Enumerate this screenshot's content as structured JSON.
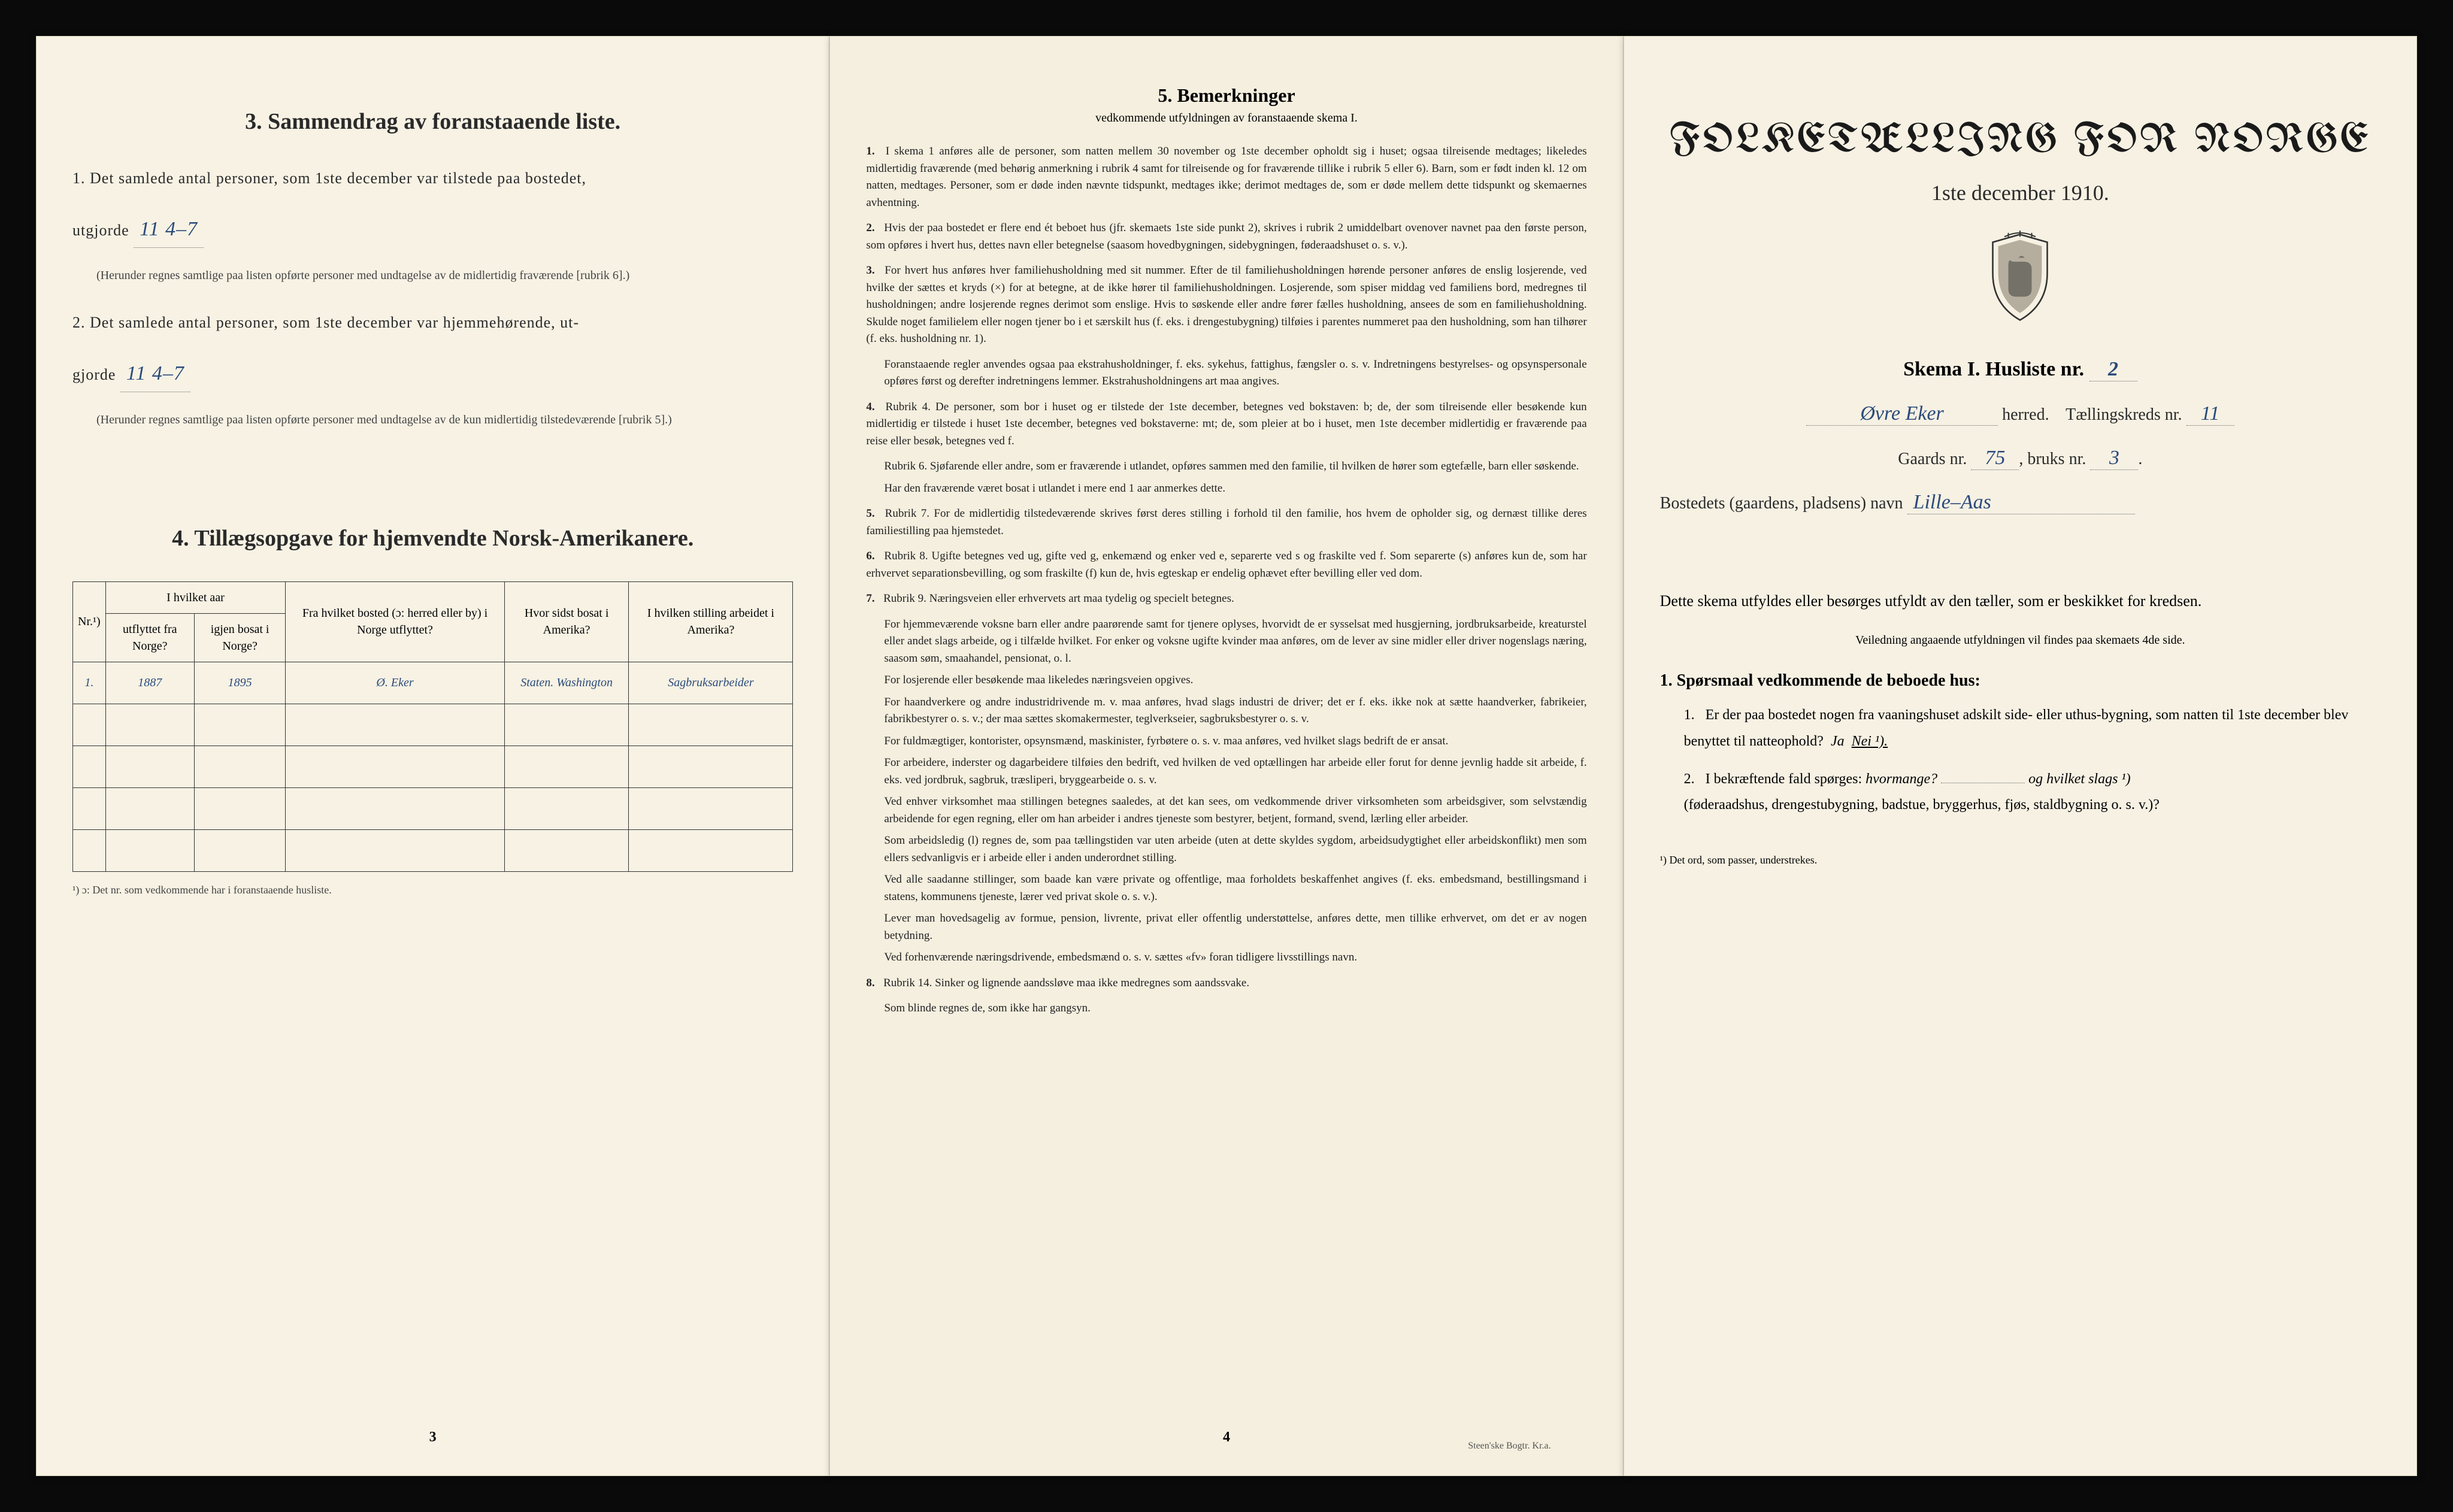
{
  "background_color": "#0a0a0a",
  "paper_color": "#f5f0e0",
  "ink_color": "#2a2a2a",
  "handwriting_color": "#2b4a7a",
  "page1": {
    "section3": {
      "heading": "3.   Sammendrag av foranstaaende liste.",
      "item1_pre": "1.  Det samlede antal personer, som 1ste december var tilstede paa bostedet,",
      "item1_label": "utgjorde",
      "item1_value": "11       4–7",
      "item1_note": "(Herunder regnes samtlige paa listen opførte personer med undtagelse av de midlertidig fraværende [rubrik 6].)",
      "item2_pre": "2.  Det samlede antal personer, som 1ste december var hjemmehørende, ut-",
      "item2_label": "gjorde",
      "item2_value": "11       4–7",
      "item2_note": "(Herunder regnes samtlige paa listen opførte personer med undtagelse av de kun midlertidig tilstedeværende [rubrik 5].)"
    },
    "section4": {
      "heading": "4.  Tillægsopgave for hjemvendte Norsk-Amerikanere.",
      "columns": [
        "Nr.¹)",
        "I hvilket aar",
        "Fra hvilket bosted (ɔ: herred eller by) i Norge utflyttet?",
        "Hvor sidst bosat i Amerika?",
        "I hvilken stilling arbeidet i Amerika?"
      ],
      "subcolumns": [
        "utflyttet fra Norge?",
        "igjen bosat i Norge?"
      ],
      "rows": [
        {
          "nr": "1.",
          "year_out": "1887",
          "year_back": "1895",
          "from": "Ø. Eker",
          "where": "Staten. Washington",
          "job": "Sagbruksarbeider"
        }
      ],
      "empty_row_count": 4,
      "footnote": "¹) ɔ: Det nr. som vedkommende har i foranstaaende husliste."
    },
    "page_number": "3"
  },
  "page2": {
    "title": "5.   Bemerkninger",
    "subtitle": "vedkommende utfyldningen av foranstaaende skema I.",
    "items": [
      {
        "n": "1.",
        "text": "I skema 1 anføres alle de personer, som natten mellem 30 november og 1ste december opholdt sig i huset; ogsaa tilreisende medtages; likeledes midlertidig fraværende (med behørig anmerkning i rubrik 4 samt for tilreisende og for fraværende tillike i rubrik 5 eller 6). Barn, som er født inden kl. 12 om natten, medtages. Personer, som er døde inden nævnte tidspunkt, medtages ikke; derimot medtages de, som er døde mellem dette tidspunkt og skemaernes avhentning."
      },
      {
        "n": "2.",
        "text": "Hvis der paa bostedet er flere end ét beboet hus (jfr. skemaets 1ste side punkt 2), skrives i rubrik 2 umiddelbart ovenover navnet paa den første person, som opføres i hvert hus, dettes navn eller betegnelse (saasom hovedbygningen, sidebygningen, føderaadshuset o. s. v.)."
      },
      {
        "n": "3.",
        "text": "For hvert hus anføres hver familiehusholdning med sit nummer. Efter de til familiehusholdningen hørende personer anføres de enslig losjerende, ved hvilke der sættes et kryds (×) for at betegne, at de ikke hører til familiehusholdningen. Losjerende, som spiser middag ved familiens bord, medregnes til husholdningen; andre losjerende regnes derimot som enslige. Hvis to søskende eller andre fører fælles husholdning, ansees de som en familiehusholdning. Skulde noget familielem eller nogen tjener bo i et særskilt hus (f. eks. i drengestubygning) tilføies i parentes nummeret paa den husholdning, som han tilhører (f. eks. husholdning nr. 1)."
      },
      {
        "n": "",
        "text": "Foranstaaende regler anvendes ogsaa paa ekstrahusholdninger, f. eks. sykehus, fattighus, fængsler o. s. v. Indretningens bestyrelses- og opsynspersonale opføres først og derefter indretningens lemmer. Ekstrahusholdningens art maa angives."
      },
      {
        "n": "4.",
        "text": "Rubrik 4. De personer, som bor i huset og er tilstede der 1ste december, betegnes ved bokstaven: b; de, der som tilreisende eller besøkende kun midlertidig er tilstede i huset 1ste december, betegnes ved bokstaverne: mt; de, som pleier at bo i huset, men 1ste december midlertidig er fraværende paa reise eller besøk, betegnes ved f."
      },
      {
        "n": "",
        "text": "Rubrik 6. Sjøfarende eller andre, som er fraværende i utlandet, opføres sammen med den familie, til hvilken de hører som egtefælle, barn eller søskende."
      },
      {
        "n": "",
        "text": "Har den fraværende været bosat i utlandet i mere end 1 aar anmerkes dette."
      },
      {
        "n": "5.",
        "text": "Rubrik 7. For de midlertidig tilstedeværende skrives først deres stilling i forhold til den familie, hos hvem de opholder sig, og dernæst tillike deres familiestilling paa hjemstedet."
      },
      {
        "n": "6.",
        "text": "Rubrik 8. Ugifte betegnes ved ug, gifte ved g, enkemænd og enker ved e, separerte ved s og fraskilte ved f. Som separerte (s) anføres kun de, som har erhvervet separationsbevilling, og som fraskilte (f) kun de, hvis egteskap er endelig ophævet efter bevilling eller ved dom."
      },
      {
        "n": "7.",
        "text": "Rubrik 9. Næringsveien eller erhvervets art maa tydelig og specielt betegnes."
      },
      {
        "n": "",
        "text": "For hjemmeværende voksne barn eller andre paarørende samt for tjenere oplyses, hvorvidt de er sysselsat med husgjerning, jordbruksarbeide, kreaturstel eller andet slags arbeide, og i tilfælde hvilket. For enker og voksne ugifte kvinder maa anføres, om de lever av sine midler eller driver nogenslags næring, saasom søm, smaahandel, pensionat, o. l."
      },
      {
        "n": "",
        "text": "For losjerende eller besøkende maa likeledes næringsveien opgives."
      },
      {
        "n": "",
        "text": "For haandverkere og andre industridrivende m. v. maa anføres, hvad slags industri de driver; det er f. eks. ikke nok at sætte haandverker, fabrikeier, fabrikbestyrer o. s. v.; der maa sættes skomakermester, teglverkseier, sagbruksbestyrer o. s. v."
      },
      {
        "n": "",
        "text": "For fuldmægtiger, kontorister, opsynsmænd, maskinister, fyrbøtere o. s. v. maa anføres, ved hvilket slags bedrift de er ansat."
      },
      {
        "n": "",
        "text": "For arbeidere, inderster og dagarbeidere tilføies den bedrift, ved hvilken de ved optællingen har arbeide eller forut for denne jevnlig hadde sit arbeide, f. eks. ved jordbruk, sagbruk, træsliperi, bryggearbeide o. s. v."
      },
      {
        "n": "",
        "text": "Ved enhver virksomhet maa stillingen betegnes saaledes, at det kan sees, om vedkommende driver virksomheten som arbeidsgiver, som selvstændig arbeidende for egen regning, eller om han arbeider i andres tjeneste som bestyrer, betjent, formand, svend, lærling eller arbeider."
      },
      {
        "n": "",
        "text": "Som arbeidsledig (l) regnes de, som paa tællingstiden var uten arbeide (uten at dette skyldes sygdom, arbeidsudygtighet eller arbeidskonflikt) men som ellers sedvanligvis er i arbeide eller i anden underordnet stilling."
      },
      {
        "n": "",
        "text": "Ved alle saadanne stillinger, som baade kan være private og offentlige, maa forholdets beskaffenhet angives (f. eks. embedsmand, bestillingsmand i statens, kommunens tjeneste, lærer ved privat skole o. s. v.)."
      },
      {
        "n": "",
        "text": "Lever man hovedsagelig av formue, pension, livrente, privat eller offentlig understøttelse, anføres dette, men tillike erhvervet, om det er av nogen betydning."
      },
      {
        "n": "",
        "text": "Ved forhenværende næringsdrivende, embedsmænd o. s. v. sættes «fv» foran tidligere livsstillings navn."
      },
      {
        "n": "8.",
        "text": "Rubrik 14. Sinker og lignende aandssløve maa ikke medregnes som aandssvake."
      },
      {
        "n": "",
        "text": "Som blinde regnes de, som ikke har gangsyn."
      }
    ],
    "page_number": "4",
    "printer": "Steen'ske Bogtr.   Kr.a."
  },
  "page3": {
    "title": "FOLKETÆLLING FOR NORGE",
    "date": "1ste december 1910.",
    "skema_label": "Skema I.   Husliste nr.",
    "husliste_nr": "2",
    "herred_value": "Øvre   Eker",
    "herred_label": "herred.",
    "tk_label": "Tællingskreds nr.",
    "tk_value": "11",
    "gaards_label": "Gaards nr.",
    "gaards_value": "75",
    "bruks_label": "bruks nr.",
    "bruks_value": "3",
    "bosted_label": "Bostedets (gaardens, pladsens) navn",
    "bosted_value": "Lille–Aas",
    "form_text": "Dette skema utfyldes eller besørges utfyldt av den tæller, som er beskikket for kredsen.",
    "form_small": "Veiledning angaaende utfyldningen vil findes paa skemaets 4de side.",
    "q_heading": "1. Spørsmaal vedkommende de beboede hus:",
    "q1": {
      "num": "1.",
      "text_a": "Er der paa bostedet nogen fra vaaningshuset adskilt side- eller uthus-bygning, som natten til 1ste december blev benyttet til natteophold?",
      "ja": "Ja",
      "nei": "Nei ¹)."
    },
    "q2": {
      "num": "2.",
      "text_a": "I bekræftende fald spørges:",
      "hvormange": "hvormange?",
      "og": "og hvilket slags ¹)",
      "text_b": "(føderaadshus, drengestubygning, badstue, bryggerhus, fjøs, staldbygning o. s. v.)?"
    },
    "footnote": "¹) Det ord, som passer, understrekes."
  }
}
